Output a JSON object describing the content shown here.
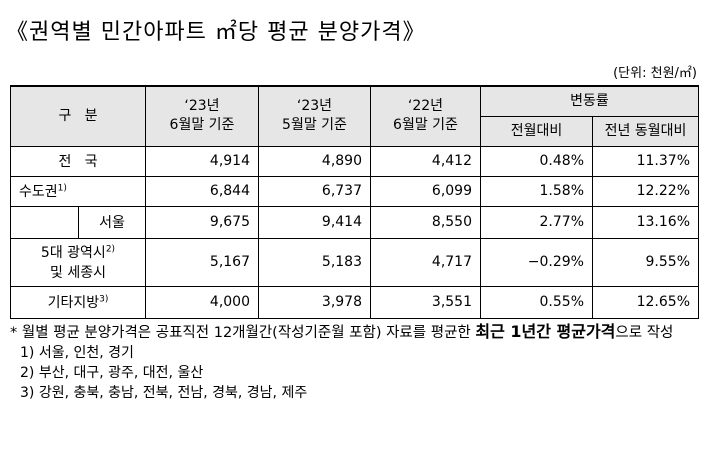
{
  "title": "《권역별 민간아파트 ㎡당 평균 분양가격》",
  "unit": "(단위: 천원/㎡)",
  "table": {
    "header": {
      "category": "구   분",
      "columns": [
        [
          "‘23년",
          "6월말 기준"
        ],
        [
          "‘23년",
          "5월말 기준"
        ],
        [
          "‘22년",
          "6월말 기준"
        ]
      ],
      "group": "변동률",
      "sub": [
        "전월대비",
        "전년 동월대비"
      ]
    },
    "rows": [
      {
        "label": "전   국",
        "cells": [
          "4,914",
          "4,890",
          "4,412",
          "0.48%",
          "11.37%"
        ]
      },
      {
        "label": "수도권",
        "note": "1)",
        "cells": [
          "6,844",
          "6,737",
          "6,099",
          "1.58%",
          "12.22%"
        ]
      },
      {
        "label": "서울",
        "cells": [
          "9,675",
          "9,414",
          "8,550",
          "2.77%",
          "13.16%"
        ]
      },
      {
        "label": "5대 광역시",
        "note": "2)",
        "label2": "및 세종시",
        "cells": [
          "5,167",
          "5,183",
          "4,717",
          "−0.29%",
          "9.55%"
        ]
      },
      {
        "label": "기타지방",
        "note": "3)",
        "cells": [
          "4,000",
          "3,978",
          "3,551",
          "0.55%",
          "12.65%"
        ]
      }
    ]
  },
  "notes": {
    "main": "* 월별 평균 분양가격은 공표직전 12개월간(작성기준월 포함) 자료를 평균한 ",
    "bold": "최근 1년간 평균가격",
    "after": "으로 작성",
    "items": [
      "1) 서울, 인천, 경기",
      "2) 부산, 대구, 광주, 대전, 울산",
      "3) 강원, 충북, 충남, 전북, 전남, 경북, 경남, 제주"
    ]
  }
}
